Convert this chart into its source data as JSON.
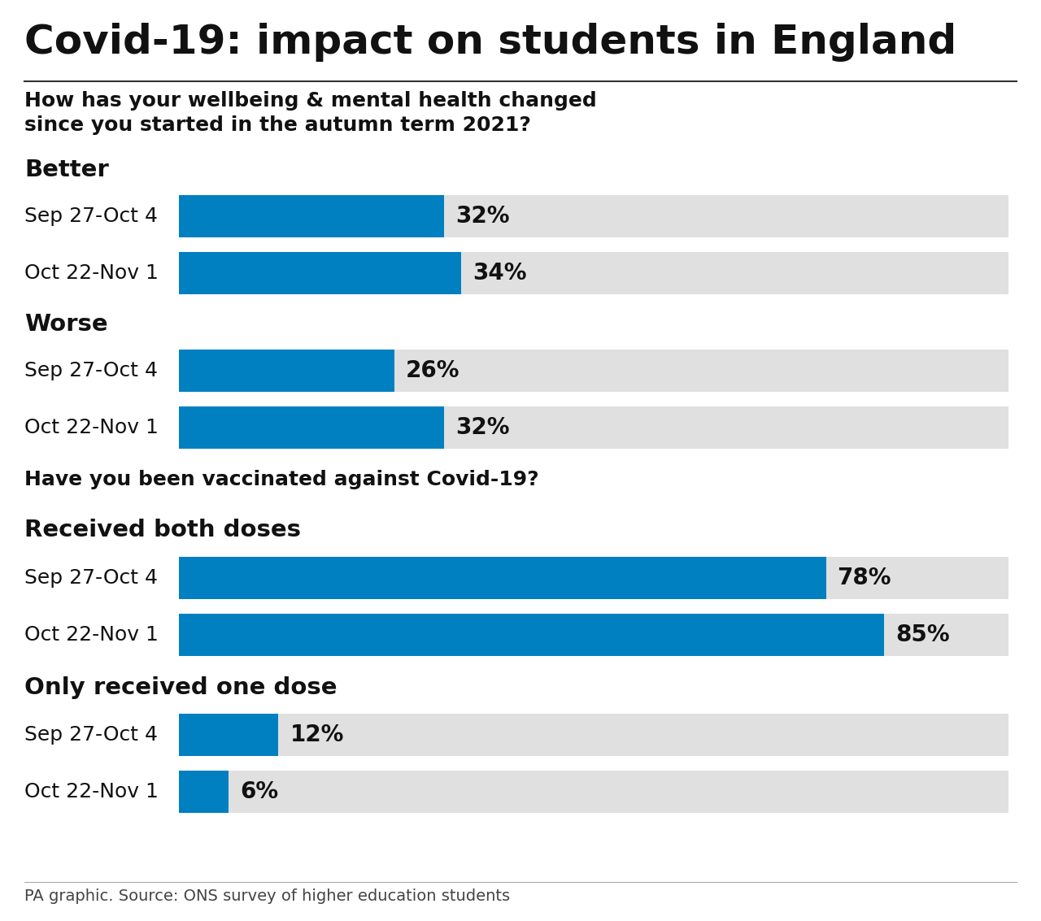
{
  "title": "Covid-19: impact on students in England",
  "subtitle1": "How has your wellbeing & mental health changed",
  "subtitle2": "since you started in the autumn term 2021?",
  "question2": "Have you been vaccinated against Covid-19?",
  "background_color": "#ffffff",
  "bar_color": "#0080c0",
  "bar_bg_color": "#e0e0e0",
  "sections": [
    {
      "label": "Better",
      "bars": [
        {
          "period": "Sep 27-Oct 4",
          "value": 32
        },
        {
          "period": "Oct 22-Nov 1",
          "value": 34
        }
      ]
    },
    {
      "label": "Worse",
      "bars": [
        {
          "period": "Sep 27-Oct 4",
          "value": 26
        },
        {
          "period": "Oct 22-Nov 1",
          "value": 32
        }
      ]
    },
    {
      "label": "Received both doses",
      "bars": [
        {
          "period": "Sep 27-Oct 4",
          "value": 78
        },
        {
          "period": "Oct 22-Nov 1",
          "value": 85
        }
      ]
    },
    {
      "label": "Only received one dose",
      "bars": [
        {
          "period": "Sep 27-Oct 4",
          "value": 12
        },
        {
          "period": "Oct 22-Nov 1",
          "value": 6
        }
      ]
    }
  ],
  "footer": "PA graphic. Source: ONS survey of higher education students",
  "max_value": 100,
  "title_fontsize": 36,
  "subtitle_fontsize": 18,
  "section_label_fontsize": 21,
  "period_fontsize": 18,
  "pct_fontsize": 20,
  "footer_fontsize": 14
}
